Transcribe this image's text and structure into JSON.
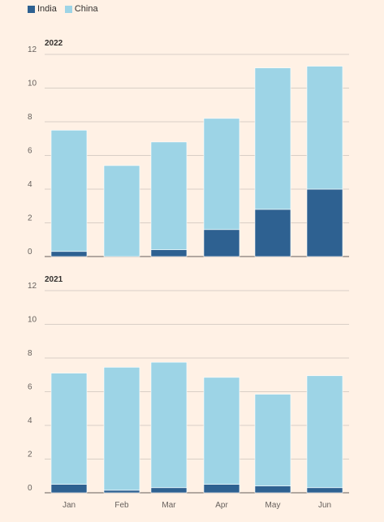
{
  "legend": {
    "items": [
      {
        "label": "India",
        "color": "#2e6191"
      },
      {
        "label": "China",
        "color": "#9dd4e6"
      }
    ]
  },
  "chart_data": [
    {
      "type": "bar",
      "stacked": true,
      "title": "2022",
      "categories": [
        "Jan",
        "Feb",
        "Mar",
        "Apr",
        "May",
        "Jun"
      ],
      "series": [
        {
          "name": "India",
          "color": "#2e6191",
          "values": [
            0.3,
            0.0,
            0.4,
            1.6,
            2.8,
            4.0
          ]
        },
        {
          "name": "China",
          "color": "#9dd4e6",
          "values": [
            7.2,
            5.4,
            6.4,
            6.6,
            8.4,
            7.3
          ]
        }
      ],
      "ylim": [
        0,
        12
      ],
      "yticks": [
        0,
        2,
        4,
        6,
        8,
        10,
        12
      ],
      "grid": true,
      "legend": "top-left"
    },
    {
      "type": "bar",
      "stacked": true,
      "title": "2021",
      "categories": [
        "Jan",
        "Feb",
        "Mar",
        "Apr",
        "May",
        "Jun"
      ],
      "series": [
        {
          "name": "India",
          "color": "#2e6191",
          "values": [
            0.5,
            0.15,
            0.3,
            0.5,
            0.4,
            0.3
          ]
        },
        {
          "name": "China",
          "color": "#9dd4e6",
          "values": [
            6.6,
            7.3,
            7.45,
            6.35,
            5.45,
            6.65
          ]
        }
      ],
      "ylim": [
        0,
        12
      ],
      "yticks": [
        0,
        2,
        4,
        6,
        8,
        10,
        12
      ],
      "grid": true,
      "legend": "top-left"
    }
  ]
}
